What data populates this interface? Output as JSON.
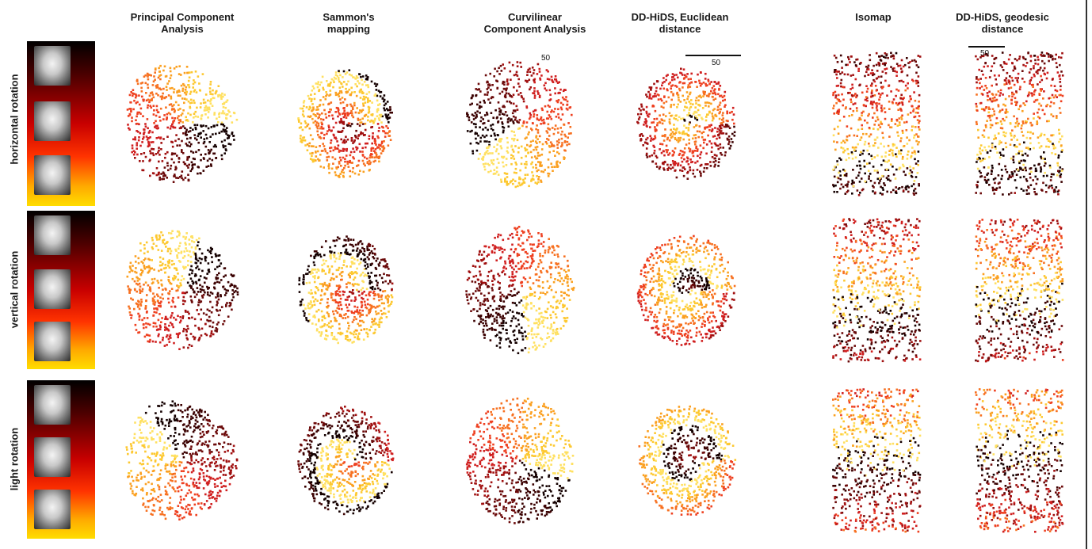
{
  "columns": [
    {
      "title_l1": "Principal Component",
      "title_l2": "Analysis"
    },
    {
      "title_l1": "Sammon's",
      "title_l2": "mapping"
    },
    {
      "title_l1": "Curvilinear",
      "title_l2": "Component Analysis"
    },
    {
      "title_l1": "DD-HiDS, Euclidean",
      "title_l2": "distance"
    },
    {
      "title_l1": "Isomap",
      "title_l2": ""
    },
    {
      "title_l1": "DD-HiDS, geodesic",
      "title_l2": "distance"
    }
  ],
  "rows": [
    {
      "label": "horizontal rotation"
    },
    {
      "label": "vertical rotation"
    },
    {
      "label": "light rotation"
    }
  ],
  "scale_labels": {
    "cca": "50",
    "ddhids_euclid": "50",
    "ddhids_geo": "50"
  },
  "colors": {
    "dark": "#1a0000",
    "mid": "#cc1a1a",
    "light": "#ffcc00"
  }
}
